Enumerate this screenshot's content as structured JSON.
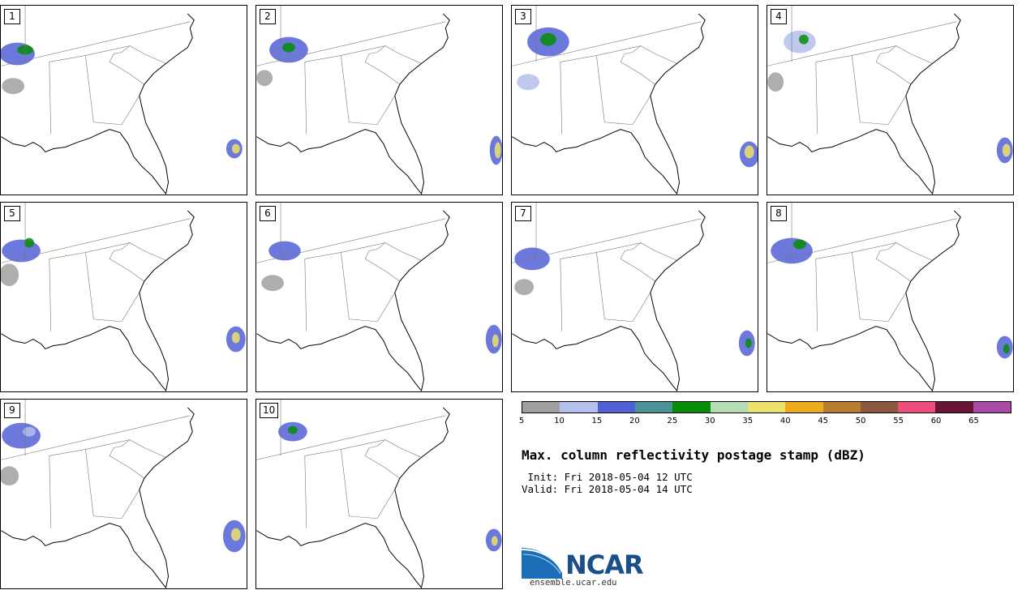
{
  "panels": [
    {
      "member": "1"
    },
    {
      "member": "2"
    },
    {
      "member": "3"
    },
    {
      "member": "4"
    },
    {
      "member": "5"
    },
    {
      "member": "6"
    },
    {
      "member": "7"
    },
    {
      "member": "8"
    },
    {
      "member": "9"
    },
    {
      "member": "10"
    }
  ],
  "legend": {
    "colors": [
      "#a0a0a0",
      "#b4bfec",
      "#5260d6",
      "#4a9298",
      "#078c07",
      "#b6dcb6",
      "#ede26a",
      "#eeab1e",
      "#b87f2e",
      "#8b5a3c",
      "#ef4e7c",
      "#6a1538",
      "#a84aa6"
    ],
    "ticks": [
      "5",
      "10",
      "15",
      "20",
      "25",
      "30",
      "35",
      "40",
      "45",
      "50",
      "55",
      "60",
      "65"
    ]
  },
  "title": "Max. column reflectivity postage stamp (dBZ)",
  "init": " Init: Fri 2018-05-04 12 UTC",
  "valid": "Valid: Fri 2018-05-04 14 UTC",
  "logo": {
    "name": "NCAR",
    "url": "ensemble.ucar.edu"
  }
}
